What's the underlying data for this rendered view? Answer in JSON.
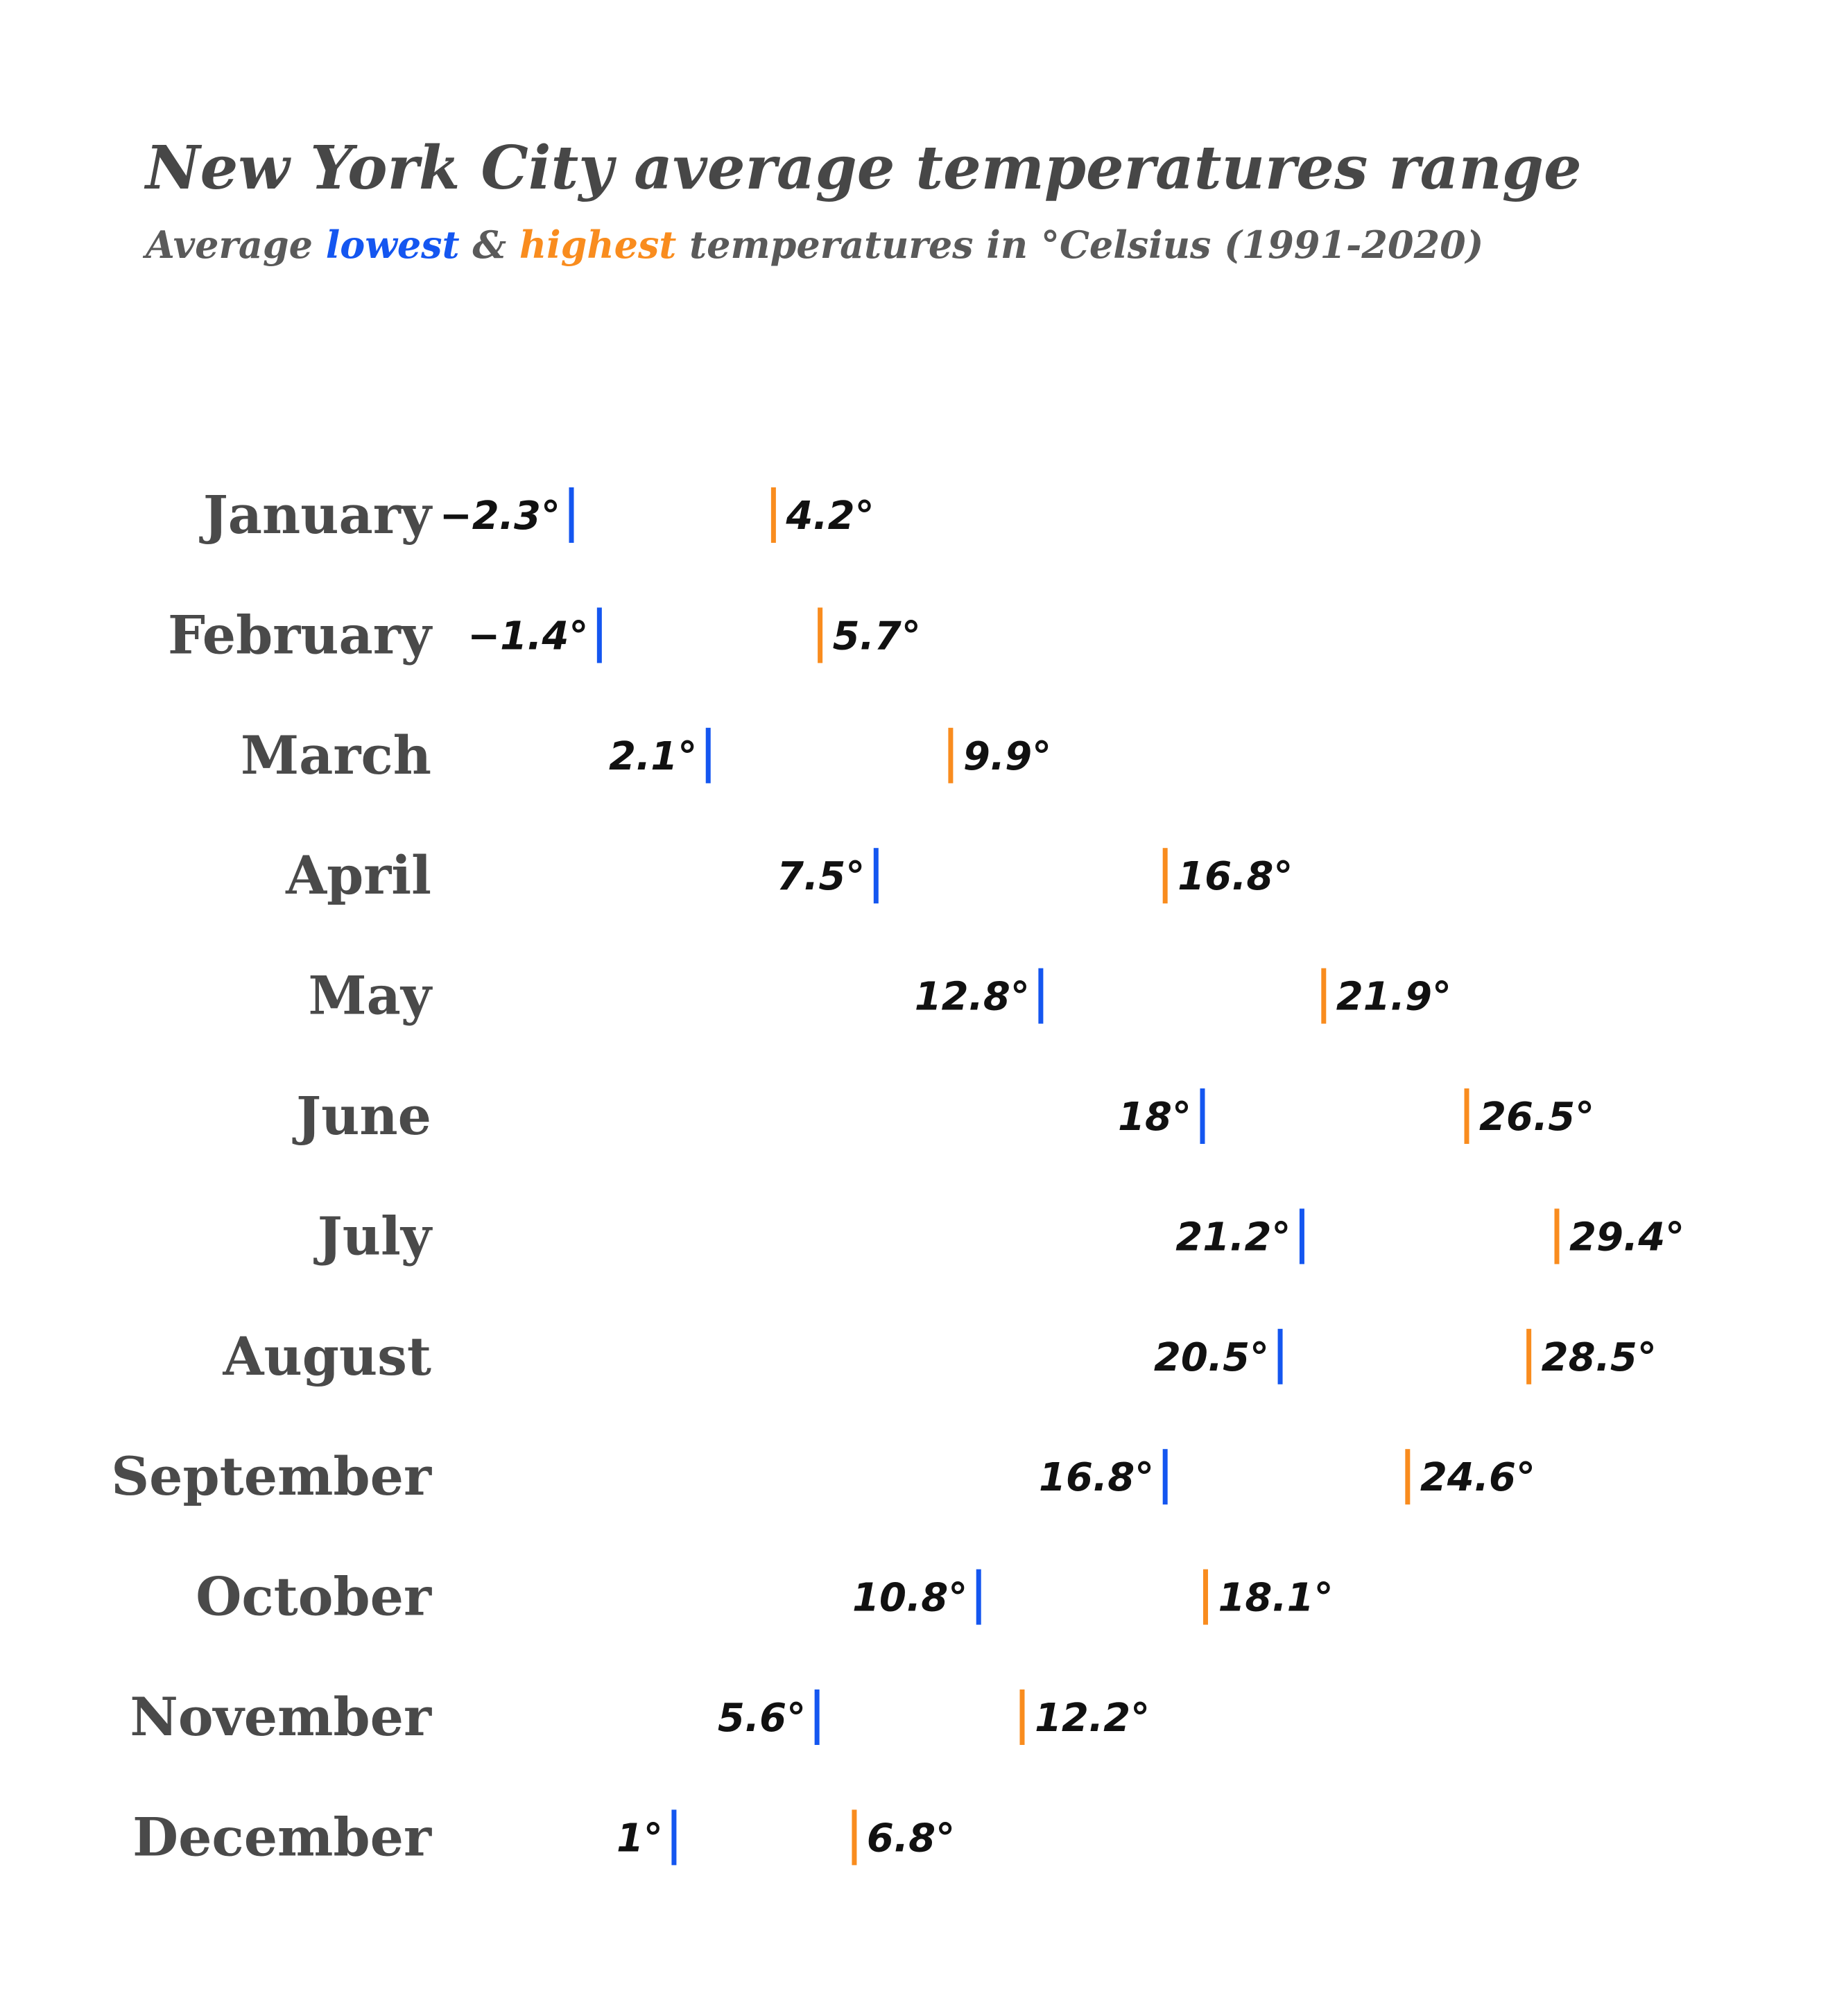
{
  "colors": {
    "low": "#1456f0",
    "high": "#f98c1e",
    "title": "#474747",
    "subtitle": "#5a5a5a",
    "month": "#4a4a4a",
    "value": "#111111"
  },
  "subtitle_parts": {
    "before": "Average ",
    "low_word": "lowest",
    "middle": " & ",
    "high_word": "highest",
    "after": " temperatures in °Celsius (1991-2020)"
  },
  "chart_data": {
    "type": "range-dot",
    "title": "New York City average temperatures range",
    "subtitle": "Average lowest & highest temperatures in °Celsius (1991-2020)",
    "unit": "°",
    "categories": [
      "January",
      "February",
      "March",
      "April",
      "May",
      "June",
      "July",
      "August",
      "September",
      "October",
      "November",
      "December"
    ],
    "series": [
      {
        "name": "lowest",
        "values": [
          -2.3,
          -1.4,
          2.1,
          7.5,
          12.8,
          18,
          21.2,
          20.5,
          16.8,
          10.8,
          5.6,
          1
        ]
      },
      {
        "name": "highest",
        "values": [
          4.2,
          5.7,
          9.9,
          16.8,
          21.9,
          26.5,
          29.4,
          28.5,
          24.6,
          18.1,
          12.2,
          6.8
        ]
      }
    ],
    "low_labels": [
      "−2.3°",
      "−1.4°",
      "2.1°",
      "7.5°",
      "12.8°",
      "18°",
      "21.2°",
      "20.5°",
      "16.8°",
      "10.8°",
      "5.6°",
      "1°"
    ],
    "high_labels": [
      "4.2°",
      "5.7°",
      "9.9°",
      "16.8°",
      "21.9°",
      "26.5°",
      "29.4°",
      "28.5°",
      "24.6°",
      "18.1°",
      "12.2°",
      "6.8°"
    ],
    "xlim": [
      -2.3,
      29.4
    ],
    "grid": false,
    "legend": "none"
  }
}
